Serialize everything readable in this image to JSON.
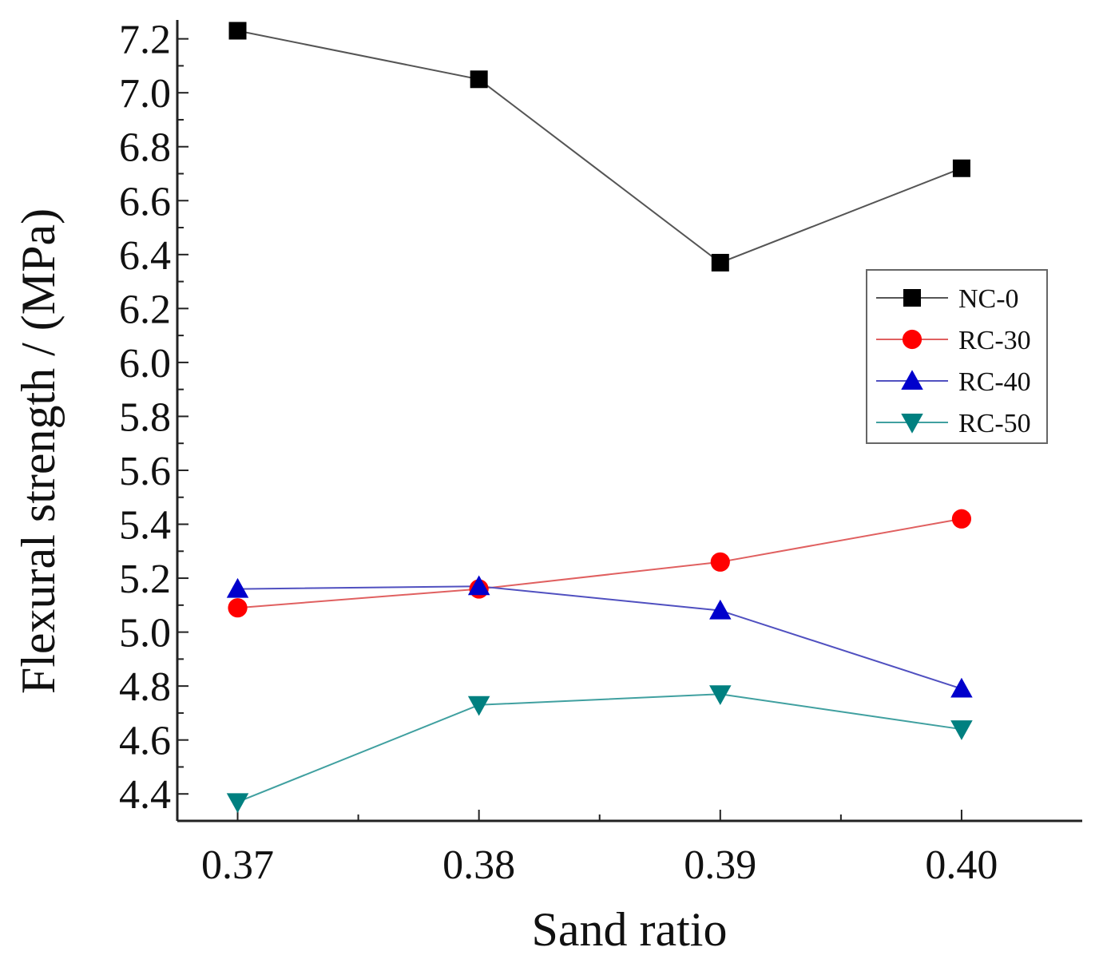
{
  "chart_data": {
    "type": "line",
    "title": "",
    "xlabel": "Sand ratio",
    "ylabel": "Flexural strength / (MPa)",
    "x": [
      0.37,
      0.38,
      0.39,
      0.4
    ],
    "x_tick_labels": [
      "0.37",
      "0.38",
      "0.39",
      "0.40"
    ],
    "xlim": [
      0.3675,
      0.405
    ],
    "ylim": [
      4.3,
      7.27
    ],
    "y_ticks": [
      4.4,
      4.6,
      4.8,
      5.0,
      5.2,
      5.4,
      5.6,
      5.8,
      6.0,
      6.2,
      6.4,
      6.6,
      6.8,
      7.0,
      7.2
    ],
    "y_tick_labels": [
      "4.4",
      "4.6",
      "4.8",
      "5.0",
      "5.2",
      "5.4",
      "5.6",
      "5.8",
      "6.0",
      "6.2",
      "6.4",
      "6.6",
      "6.8",
      "7.0",
      "7.2"
    ],
    "legend_position": "right",
    "series": [
      {
        "name": "NC-0",
        "marker": "square",
        "color": "#000000",
        "line_color": "#555555",
        "values": [
          7.23,
          7.05,
          6.37,
          6.72
        ]
      },
      {
        "name": "RC-30",
        "marker": "circle",
        "color": "#ff0000",
        "line_color": "#e06060",
        "values": [
          5.09,
          5.16,
          5.26,
          5.42
        ]
      },
      {
        "name": "RC-40",
        "marker": "triangle-up",
        "color": "#0000cc",
        "line_color": "#5050c0",
        "values": [
          5.16,
          5.17,
          5.08,
          4.79
        ]
      },
      {
        "name": "RC-50",
        "marker": "triangle-down",
        "color": "#008080",
        "line_color": "#40a0a0",
        "values": [
          4.37,
          4.73,
          4.77,
          4.64
        ]
      }
    ]
  }
}
